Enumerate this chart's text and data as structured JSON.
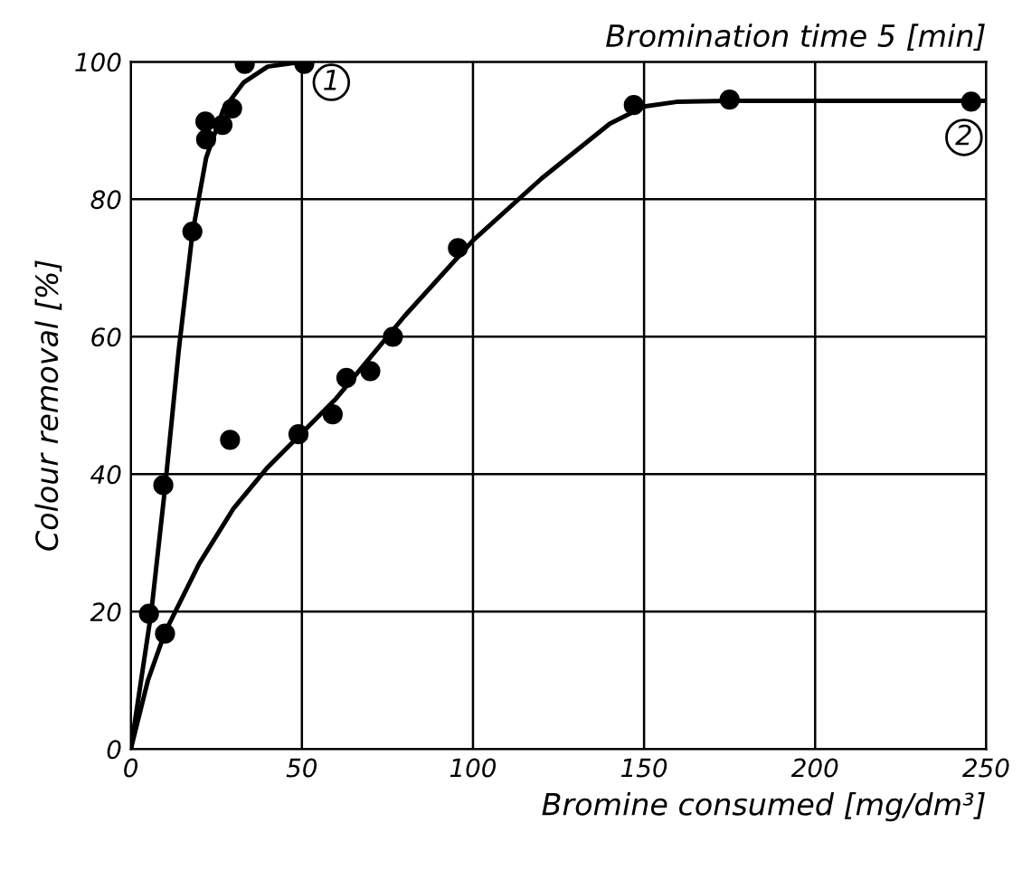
{
  "chart_data": {
    "type": "scatter",
    "title": "Bromination time 5 [min]",
    "xlabel": "Bromine consumed [mg/dm³]",
    "ylabel": "Colour removal [%]",
    "xlim": [
      0,
      250
    ],
    "ylim": [
      0,
      100
    ],
    "xticks": [
      0,
      50,
      100,
      150,
      200,
      250
    ],
    "yticks": [
      0,
      20,
      40,
      60,
      80,
      100
    ],
    "grid": true,
    "marker": "circle",
    "series": [
      {
        "color": "#000000",
        "x": [
          5.3,
          9.5,
          18,
          21.8,
          22,
          26.8,
          29.6,
          33.3,
          50.7
        ],
        "values": [
          19.7,
          38.4,
          75.3,
          91.3,
          88.7,
          90.8,
          93.2,
          99.7,
          99.7
        ]
      },
      {
        "color": "#000000",
        "x": [
          10,
          29,
          49,
          59,
          63,
          70,
          76.6,
          95.6,
          147,
          175,
          245.6
        ],
        "values": [
          16.8,
          45,
          45.8,
          48.7,
          54,
          55,
          60,
          72.9,
          93.7,
          94.5,
          94.2
        ]
      },
      {
        "type": "line",
        "color": "#000000",
        "marker": "none",
        "x": [
          0,
          3,
          6,
          10,
          14,
          18,
          22,
          27,
          33,
          40,
          50
        ],
        "values": [
          0,
          10,
          20,
          38,
          58,
          75,
          86,
          93,
          97,
          99.3,
          100
        ]
      },
      {
        "type": "line",
        "color": "#000000",
        "marker": "none",
        "x": [
          0,
          5,
          10,
          20,
          30,
          40,
          50,
          60,
          70,
          80,
          100,
          120,
          140,
          150,
          160,
          175,
          250
        ],
        "values": [
          0,
          10,
          17,
          27,
          35,
          41,
          46,
          51,
          57,
          63,
          74,
          83,
          91,
          93.5,
          94.2,
          94.3,
          94.3
        ]
      }
    ],
    "annotations": [
      {
        "text": "1",
        "x": 58.6,
        "y": 97
      },
      {
        "text": "2",
        "x": 243.5,
        "y": 89
      }
    ]
  }
}
